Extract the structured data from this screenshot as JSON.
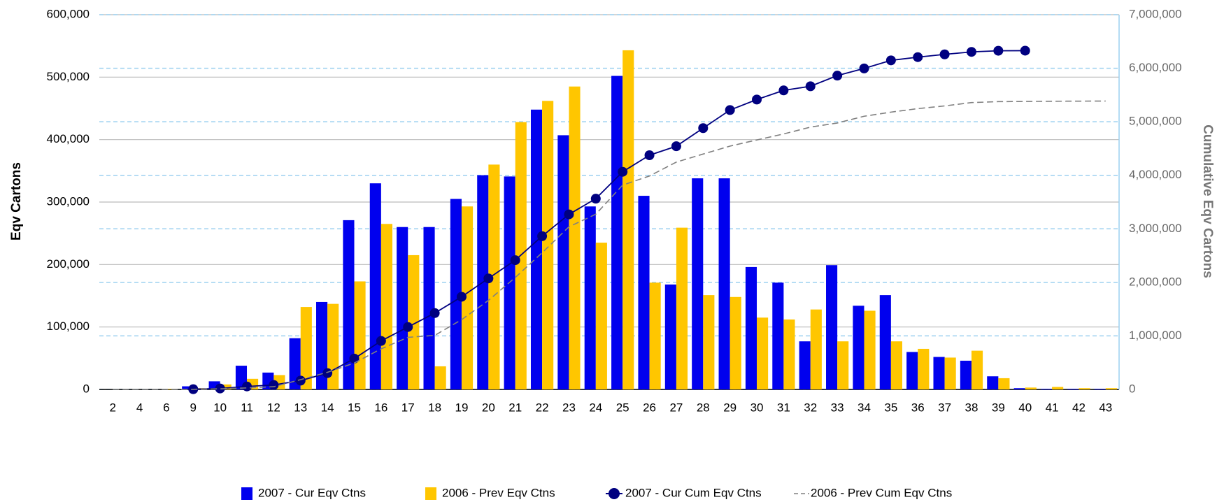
{
  "chart_data": {
    "type": "bar",
    "y_label": "Eqv Cartons",
    "y2_label": "Cumulative Eqv Cartons",
    "categories": [
      "2",
      "4",
      "6",
      "9",
      "10",
      "11",
      "12",
      "13",
      "14",
      "15",
      "16",
      "17",
      "18",
      "19",
      "20",
      "21",
      "22",
      "23",
      "24",
      "25",
      "26",
      "27",
      "28",
      "29",
      "30",
      "31",
      "32",
      "33",
      "34",
      "35",
      "36",
      "37",
      "38",
      "39",
      "40",
      "41",
      "42",
      "43"
    ],
    "series": [
      {
        "name": "2007 - Cur Eqv Ctns",
        "type": "bar",
        "color": "#0000ee",
        "values": [
          0,
          0,
          0,
          5000,
          13000,
          38000,
          27000,
          82000,
          140000,
          271000,
          330000,
          260000,
          260000,
          305000,
          343000,
          341000,
          448000,
          407000,
          293000,
          502000,
          310000,
          168000,
          338000,
          338000,
          196000,
          171000,
          77000,
          199000,
          134000,
          151000,
          60000,
          52000,
          46000,
          21000,
          2000,
          1000,
          1000,
          1000
        ]
      },
      {
        "name": "2006 - Prev Eqv Ctns",
        "type": "bar",
        "color": "#ffc600",
        "values": [
          0,
          0,
          1000,
          2000,
          8000,
          17000,
          23000,
          132000,
          137000,
          173000,
          265000,
          215000,
          37000,
          293000,
          360000,
          428000,
          462000,
          485000,
          235000,
          543000,
          171000,
          259000,
          151000,
          148000,
          115000,
          112000,
          128000,
          77000,
          126000,
          77000,
          65000,
          51000,
          62000,
          18000,
          3000,
          4000,
          2000,
          2000
        ]
      },
      {
        "name": "2007 - Cur Cum Eqv Ctns",
        "type": "line",
        "axis": "y2",
        "color": "#000080",
        "marker": "circle",
        "values": [
          null,
          null,
          null,
          5000,
          18000,
          56000,
          83000,
          165000,
          305000,
          576000,
          906000,
          1166000,
          1426000,
          1731000,
          2074000,
          2415000,
          2863000,
          3270000,
          3563000,
          4065000,
          4375000,
          4543000,
          4881000,
          5219000,
          5415000,
          5586000,
          5663000,
          5862000,
          5996000,
          6147000,
          6207000,
          6259000,
          6305000,
          6326000,
          6328000,
          null,
          null,
          null
        ]
      },
      {
        "name": "2006 - Prev Cum Eqv Ctns",
        "type": "line",
        "axis": "y2",
        "color": "#808080",
        "dashed": true,
        "values": [
          0,
          0,
          1000,
          3000,
          11000,
          28000,
          51000,
          183000,
          320000,
          493000,
          758000,
          973000,
          1010000,
          1303000,
          1663000,
          2091000,
          2553000,
          3038000,
          3273000,
          3816000,
          3987000,
          4246000,
          4397000,
          4545000,
          4660000,
          4772000,
          4900000,
          4977000,
          5103000,
          5180000,
          5245000,
          5296000,
          5358000,
          5376000,
          5379000,
          5383000,
          5385000,
          5387000
        ]
      }
    ],
    "ylim": [
      0,
      600000
    ],
    "yticks": [
      0,
      {
        "value": 100000,
        "label": "100,000"
      },
      {
        "value": 200000,
        "label": "200,000"
      },
      {
        "value": 300000,
        "label": "300,000"
      },
      {
        "value": 400000,
        "label": "400,000"
      },
      {
        "value": 500000,
        "label": "500,000"
      },
      {
        "value": 600000,
        "label": "600,000"
      }
    ],
    "y2lim": [
      0,
      7000000
    ],
    "y2ticks": [
      0,
      {
        "value": 1000000,
        "label": "1,000,000"
      },
      {
        "value": 2000000,
        "label": "2,000,000"
      },
      {
        "value": 3000000,
        "label": "3,000,000"
      },
      {
        "value": 4000000,
        "label": "4,000,000"
      },
      {
        "value": 5000000,
        "label": "5,000,000"
      },
      {
        "value": 6000000,
        "label": "6,000,000"
      },
      {
        "value": 7000000,
        "label": "7,000,000"
      }
    ],
    "grid": true,
    "legend": "bottom"
  }
}
